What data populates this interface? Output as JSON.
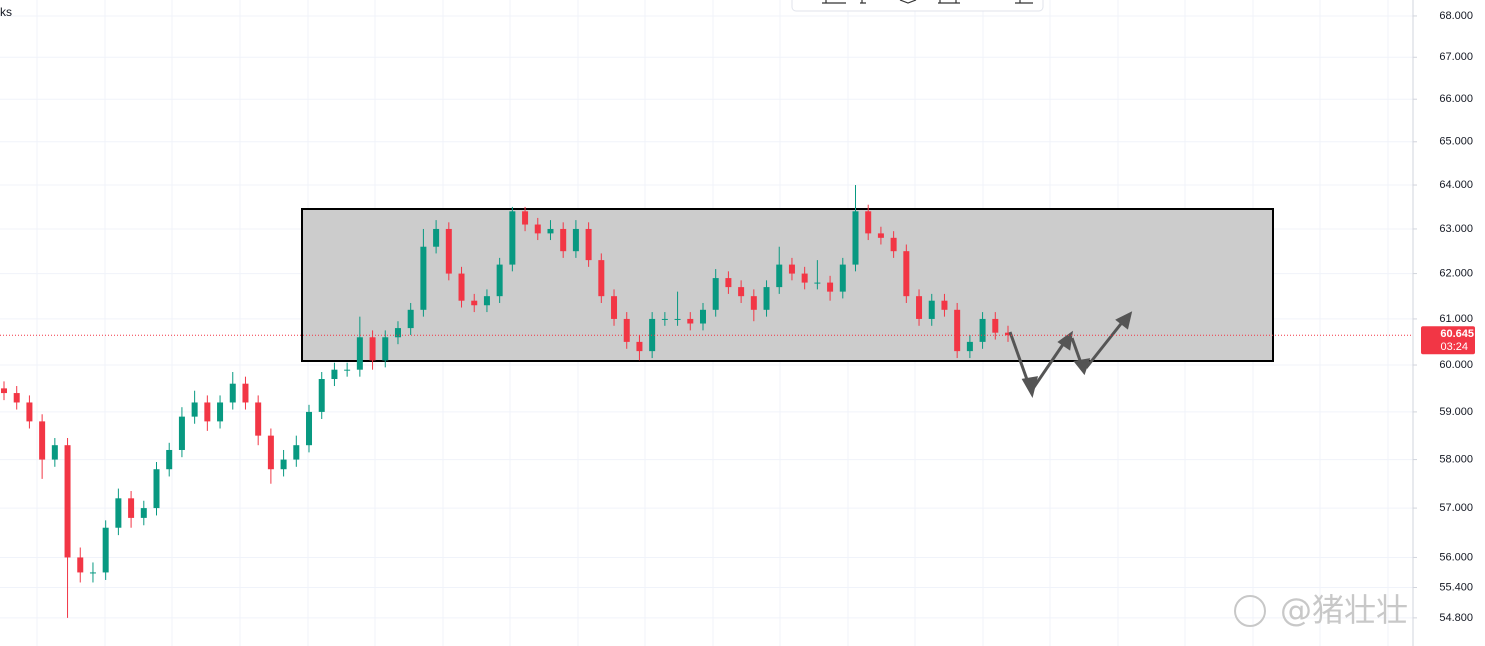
{
  "chart_data": {
    "type": "candlestick",
    "header_fragment": "ks",
    "countdown": "03:24",
    "watermark": "@猪壮壮",
    "log_scale": true,
    "grid": true,
    "up_color": "#089981",
    "down_color": "#f23645",
    "ylim": [
      54.25,
      68.39
    ],
    "yticks": [
      {
        "value": 68,
        "label": "68.000"
      },
      {
        "value": 67,
        "label": "67.000"
      },
      {
        "value": 66,
        "label": "66.000"
      },
      {
        "value": 65,
        "label": "65.000"
      },
      {
        "value": 64,
        "label": "64.000"
      },
      {
        "value": 63,
        "label": "63.000"
      },
      {
        "value": 62,
        "label": "62.000"
      },
      {
        "value": 61,
        "label": "61.000"
      },
      {
        "value": 60,
        "label": "60.000"
      },
      {
        "value": 59,
        "label": "59.000"
      },
      {
        "value": 58,
        "label": "58.000"
      },
      {
        "value": 57,
        "label": "57.000"
      },
      {
        "value": 56,
        "label": "56.000"
      },
      {
        "value": 55.4,
        "label": "55.400"
      },
      {
        "value": 54.8,
        "label": "54.800"
      }
    ],
    "categories": [
      null,
      null,
      null,
      null,
      null,
      null,
      null,
      null,
      null,
      null,
      null,
      null,
      null,
      null,
      null,
      null,
      null,
      null,
      null,
      null,
      null,
      null,
      null,
      null,
      null,
      null,
      null,
      null,
      null,
      null,
      null,
      null,
      null,
      null,
      null,
      null,
      null,
      null,
      null,
      null,
      null,
      null,
      null,
      null,
      null,
      null,
      null,
      null,
      null,
      null,
      null,
      null,
      null,
      null,
      null,
      null,
      null,
      null,
      null,
      null,
      null,
      null,
      null,
      null,
      null,
      null,
      null,
      null,
      null,
      null,
      null,
      null,
      null,
      null,
      null,
      null,
      null,
      null,
      null,
      null
    ],
    "open": [
      59.5,
      59.4,
      59.2,
      58.8,
      58.0,
      58.3,
      56.0,
      55.7,
      55.7,
      56.6,
      57.2,
      56.8,
      57.0,
      57.8,
      58.2,
      58.9,
      59.2,
      58.8,
      59.2,
      59.6,
      59.2,
      58.5,
      57.8,
      58.0,
      58.3,
      59.0,
      59.7,
      59.9,
      59.9,
      60.6,
      60.1,
      60.6,
      60.8,
      61.2,
      62.6,
      63.0,
      62.0,
      61.4,
      61.3,
      61.5,
      62.2,
      63.4,
      63.1,
      62.9,
      63.0,
      62.5,
      63.0,
      62.3,
      61.5,
      61.0,
      60.5,
      60.3,
      61.0,
      61.0,
      61.0,
      60.9,
      61.2,
      61.9,
      61.7,
      61.5,
      61.2,
      61.7,
      62.2,
      62.0,
      61.8,
      61.8,
      61.6,
      62.2,
      63.4,
      62.9,
      62.8,
      62.5,
      61.5,
      61.0,
      61.4,
      61.2,
      60.3,
      60.5,
      61.0,
      60.7
    ],
    "high": [
      59.65,
      59.55,
      59.35,
      58.95,
      58.45,
      58.45,
      56.2,
      55.9,
      56.75,
      57.4,
      57.35,
      57.15,
      57.95,
      58.35,
      59.1,
      59.45,
      59.35,
      59.35,
      59.85,
      59.75,
      59.35,
      58.65,
      58.2,
      58.5,
      59.15,
      59.85,
      60.05,
      60.05,
      61.05,
      60.75,
      60.75,
      60.95,
      61.35,
      63.0,
      63.2,
      63.15,
      62.15,
      61.55,
      61.65,
      62.35,
      63.5,
      63.5,
      63.25,
      63.2,
      63.15,
      63.2,
      63.15,
      62.45,
      61.65,
      61.15,
      60.65,
      61.15,
      61.15,
      61.6,
      61.15,
      61.35,
      62.1,
      62.05,
      61.85,
      61.65,
      61.85,
      62.6,
      62.35,
      62.15,
      62.3,
      61.95,
      62.35,
      64.0,
      63.55,
      63.05,
      62.95,
      62.65,
      61.65,
      61.55,
      61.55,
      61.35,
      60.65,
      61.15,
      61.15,
      60.85
    ],
    "low": [
      59.25,
      59.05,
      58.65,
      57.6,
      57.85,
      54.8,
      55.5,
      55.5,
      55.55,
      56.45,
      56.6,
      56.65,
      56.85,
      57.65,
      58.05,
      58.75,
      58.6,
      58.65,
      59.05,
      59.05,
      58.3,
      57.5,
      57.65,
      57.85,
      58.15,
      58.85,
      59.55,
      59.75,
      59.75,
      59.9,
      59.95,
      60.45,
      60.65,
      61.05,
      62.45,
      61.85,
      61.25,
      61.15,
      61.15,
      61.35,
      62.05,
      62.95,
      62.75,
      62.75,
      62.35,
      62.35,
      62.15,
      61.35,
      60.85,
      60.35,
      60.1,
      60.15,
      60.85,
      60.85,
      60.75,
      60.75,
      61.05,
      61.55,
      61.35,
      60.95,
      61.05,
      61.55,
      61.85,
      61.65,
      61.65,
      61.4,
      61.45,
      62.05,
      62.75,
      62.65,
      62.35,
      61.35,
      60.85,
      60.85,
      61.05,
      60.15,
      60.15,
      60.35,
      60.55,
      60.5
    ],
    "close": [
      59.4,
      59.2,
      58.8,
      58.0,
      58.3,
      56.0,
      55.7,
      55.7,
      56.6,
      57.2,
      56.8,
      57.0,
      57.8,
      58.2,
      58.9,
      59.2,
      58.8,
      59.2,
      59.6,
      59.2,
      58.5,
      57.8,
      58.0,
      58.3,
      59.0,
      59.7,
      59.9,
      59.9,
      60.6,
      60.1,
      60.6,
      60.8,
      61.2,
      62.6,
      63.0,
      62.0,
      61.4,
      61.3,
      61.5,
      62.2,
      63.4,
      63.1,
      62.9,
      63.0,
      62.5,
      63.0,
      62.3,
      61.5,
      61.0,
      60.5,
      60.3,
      61.0,
      61.0,
      61.0,
      60.9,
      61.2,
      61.9,
      61.7,
      61.5,
      61.2,
      61.7,
      62.2,
      62.0,
      61.8,
      61.8,
      61.6,
      62.2,
      63.4,
      62.9,
      62.8,
      62.5,
      61.5,
      61.0,
      61.4,
      61.2,
      60.3,
      60.5,
      61.0,
      60.7,
      60.645
    ]
  }
}
